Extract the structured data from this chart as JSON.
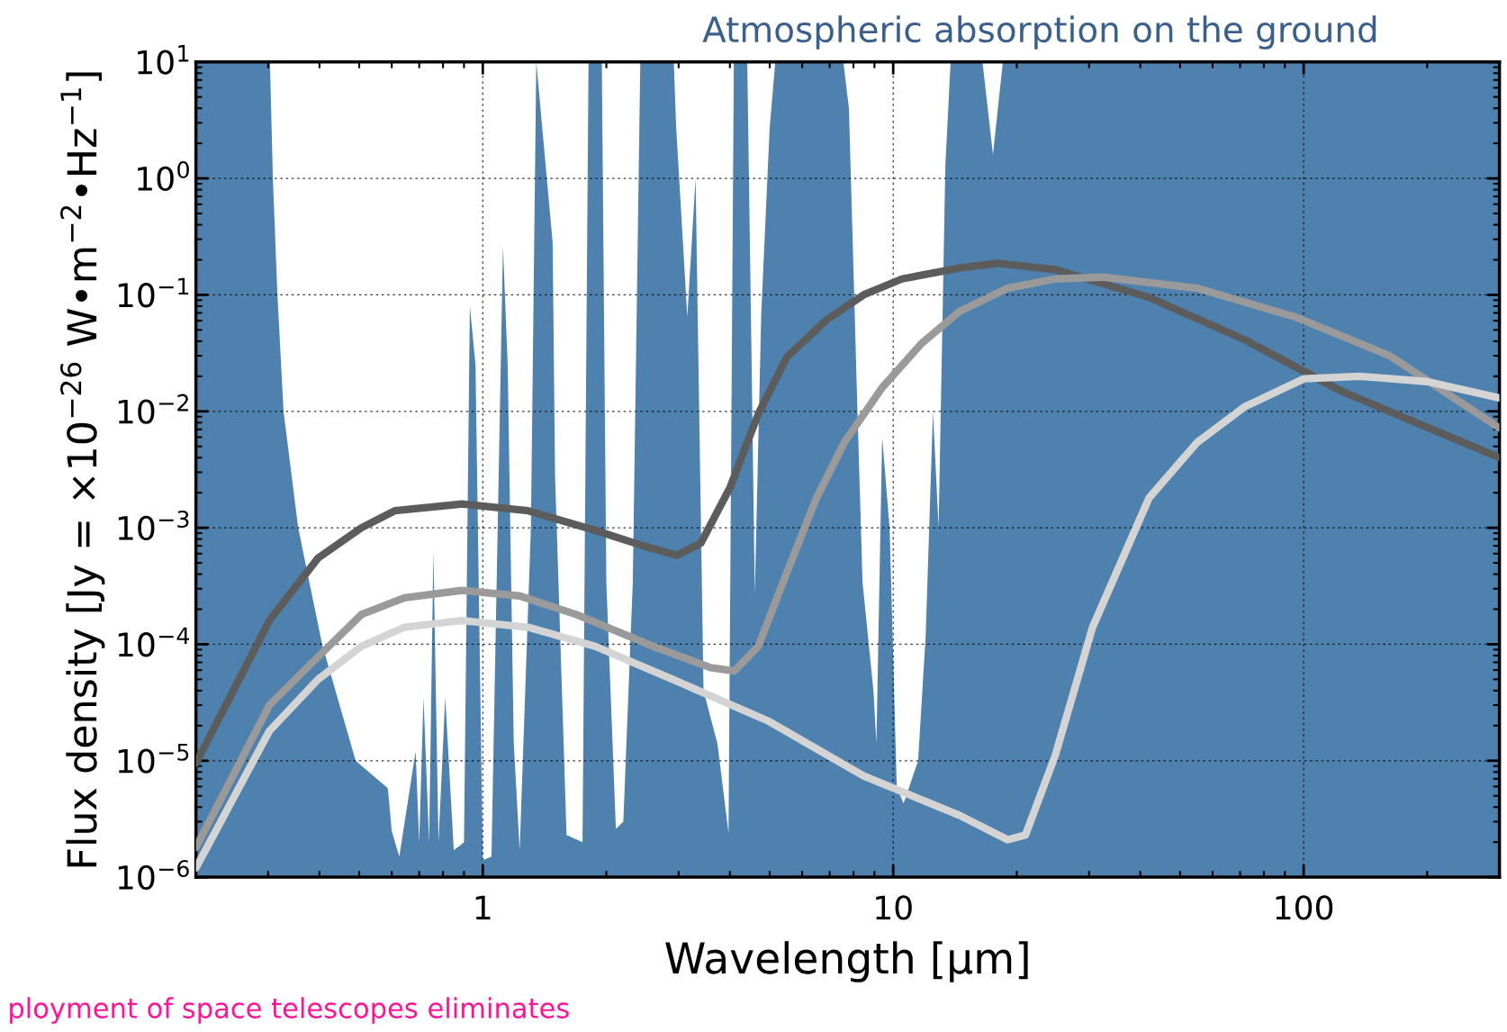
{
  "chart_data": {
    "type": "line",
    "title": "Atmospheric absorption on the ground",
    "xlabel": "Wavelength [µm]",
    "ylabel": "Flux density [Jy = ×10$^{−26}$ W•m$^{−2}$•Hz$^{−1}$]",
    "annotations": [
      "ployment of space telescopes eliminates"
    ],
    "log": "xy",
    "grid": true,
    "legend": false,
    "marker": "none",
    "line_style": "solid",
    "xlim": [
      0.2,
      300
    ],
    "ylim": [
      1e-06,
      10
    ],
    "xticks": [
      1,
      10,
      100
    ],
    "yticks": [
      {
        "value": 1e-06,
        "label": "10$^{−6}$"
      },
      {
        "value": 1e-05,
        "label": "10$^{−5}$"
      },
      {
        "value": 0.0001,
        "label": "10$^{−4}$"
      },
      {
        "value": 0.001,
        "label": "10$^{−3}$"
      },
      {
        "value": 0.01,
        "label": "10$^{−2}$"
      },
      {
        "value": 0.1,
        "label": "10$^{−1}$"
      },
      {
        "value": 1,
        "label": "10$^{0}$"
      },
      {
        "value": 10,
        "label": "10$^{1}$"
      }
    ],
    "series": [
      {
        "type": "area",
        "color": "#4e81ad",
        "x": [
          0.2,
          0.3,
          0.303,
          0.308,
          0.316,
          0.327,
          0.355,
          0.406,
          0.49,
          0.587,
          0.6,
          0.626,
          0.686,
          0.7,
          0.717,
          0.74,
          0.758,
          0.78,
          0.81,
          0.85,
          0.9,
          0.93,
          0.96,
          1.0,
          1.05,
          1.12,
          1.15,
          1.19,
          1.23,
          1.31,
          1.35,
          1.48,
          1.5,
          1.6,
          1.75,
          1.81,
          1.95,
          2.0,
          2.11,
          2.2,
          2.32,
          2.42,
          2.92,
          2.96,
          3.15,
          3.3,
          3.45,
          3.73,
          3.97,
          4.09,
          4.41,
          4.54,
          4.6,
          4.77,
          5.0,
          5.16,
          7.56,
          7.8,
          8.17,
          8.42,
          8.95,
          9.1,
          9.4,
          9.8,
          10.2,
          10.6,
          11.5,
          12.0,
          12.5,
          12.9,
          13.4,
          13.8,
          16.5,
          17.5,
          18.5,
          19.5,
          300
        ],
        "values": [
          10,
          10,
          10,
          1,
          0.1,
          0.01,
          0.001,
          0.0001,
          1e-05,
          5.8e-06,
          2.5e-06,
          1.5e-06,
          1.2e-05,
          2e-06,
          3.5e-05,
          2e-06,
          0.00063,
          2e-06,
          3.5e-05,
          1.7e-06,
          2e-06,
          0.08,
          0.025,
          1.4e-06,
          1.5e-06,
          0.26,
          0.025,
          1.4e-05,
          1.7e-06,
          0.001,
          10,
          0.28,
          0.0028,
          2.3e-06,
          2e-06,
          10,
          10,
          0.00034,
          2.6e-06,
          3e-06,
          0.00034,
          10,
          10,
          2.7,
          0.065,
          1,
          4e-05,
          1.4e-05,
          2.4e-06,
          10,
          10,
          0.008,
          0.00027,
          0.07,
          2.7,
          10,
          10,
          4,
          0.012,
          0.00034,
          4e-05,
          1.4e-05,
          0.006,
          0.001,
          6e-06,
          4.3e-06,
          1e-05,
          0.00012,
          0.01,
          0.001,
          1.3,
          10,
          10,
          1.6,
          10,
          10,
          10
        ]
      },
      {
        "color": "#5c5c5c",
        "x": [
          0.2,
          0.302,
          0.397,
          0.506,
          0.61,
          0.89,
          1.29,
          1.88,
          2.46,
          2.97,
          3.4,
          4.0,
          4.69,
          5.5,
          6.84,
          8.47,
          10.5,
          14.5,
          18,
          24.8,
          42,
          72,
          123,
          300
        ],
        "values": [
          9.5e-06,
          0.00016,
          0.00055,
          0.001,
          0.0014,
          0.0016,
          0.0014,
          0.00095,
          0.0007,
          0.00058,
          0.00074,
          0.0022,
          0.0095,
          0.029,
          0.06,
          0.1,
          0.137,
          0.17,
          0.187,
          0.165,
          0.095,
          0.041,
          0.015,
          0.004
        ]
      },
      {
        "color": "#9a9a9a",
        "x": [
          0.2,
          0.302,
          0.397,
          0.506,
          0.644,
          0.89,
          1.23,
          1.69,
          2.6,
          3.59,
          4.1,
          4.69,
          5.5,
          6.5,
          7.6,
          9.4,
          11.7,
          14.5,
          19,
          24.8,
          32.4,
          55,
          95,
          162,
          300
        ],
        "values": [
          1.8e-06,
          3e-05,
          7.8e-05,
          0.00018,
          0.00025,
          0.00029,
          0.00026,
          0.00018,
          9.6e-05,
          6.3e-05,
          5.9e-05,
          9.6e-05,
          0.00041,
          0.0018,
          0.0054,
          0.016,
          0.038,
          0.072,
          0.114,
          0.137,
          0.142,
          0.114,
          0.065,
          0.03,
          0.0072
        ]
      },
      {
        "color": "#d4d4d4",
        "x": [
          0.2,
          0.302,
          0.397,
          0.506,
          0.644,
          0.89,
          1.29,
          1.88,
          2.9,
          4.95,
          8.47,
          14.5,
          19,
          21,
          24.8,
          30.6,
          42,
          55,
          72,
          100,
          137,
          200,
          300
        ],
        "values": [
          1.2e-06,
          1.8e-05,
          5e-05,
          9.6e-05,
          0.00014,
          0.00016,
          0.00014,
          9.6e-05,
          5e-05,
          2.2e-05,
          7.4e-06,
          3.4e-06,
          2.1e-06,
          2.3e-06,
          1.1e-05,
          0.00014,
          0.0018,
          0.0054,
          0.011,
          0.019,
          0.02,
          0.018,
          0.013
        ]
      }
    ]
  }
}
